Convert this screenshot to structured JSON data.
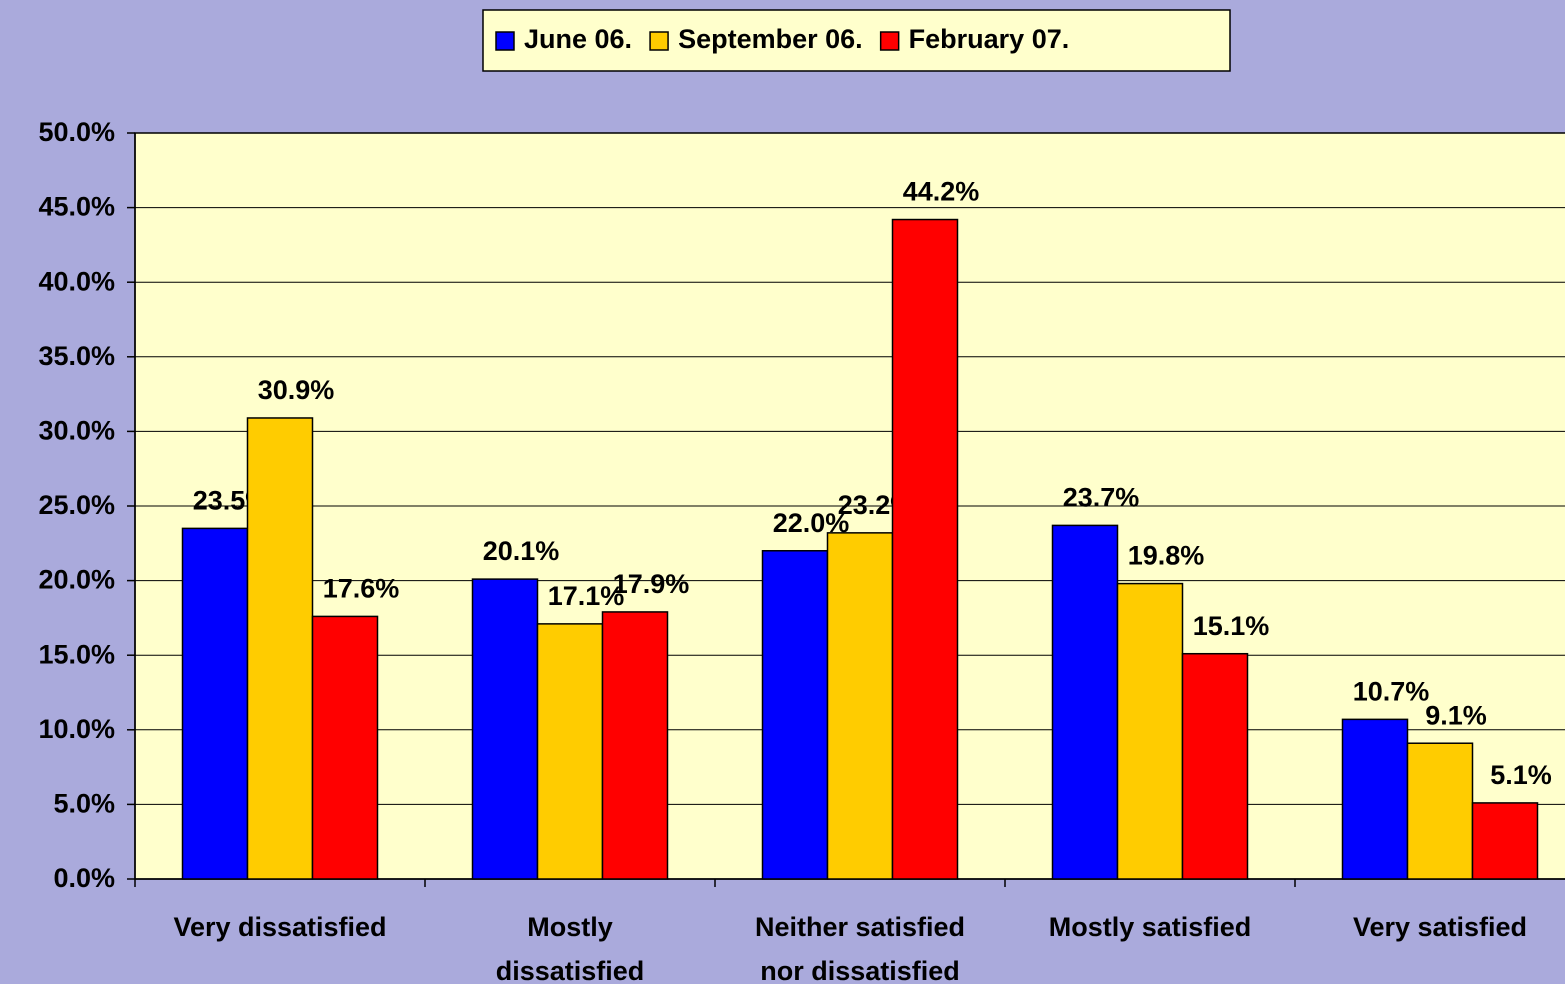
{
  "chart_data": {
    "type": "bar",
    "categories": [
      "Very dissatisfied",
      "Mostly\ndissatisfied",
      "Neither satisfied\nnor dissatisfied",
      "Mostly satisfied",
      "Very satisfied"
    ],
    "series": [
      {
        "name": "June 06.",
        "color": "#0000ff",
        "values": [
          23.5,
          20.1,
          22.0,
          23.7,
          10.7
        ],
        "value_labels": [
          "23.5%",
          "20.1%",
          "22.0%",
          "23.7%",
          "10.7%"
        ]
      },
      {
        "name": "September 06.",
        "color": "#ffcc00",
        "values": [
          30.9,
          17.1,
          23.2,
          19.8,
          9.1
        ],
        "value_labels": [
          "30.9%",
          "17.1%",
          "23.2%",
          "19.8%",
          "9.1%"
        ]
      },
      {
        "name": "February 07.",
        "color": "#ff0000",
        "values": [
          17.6,
          17.9,
          44.2,
          15.1,
          5.1
        ],
        "value_labels": [
          "17.6%",
          "17.9%",
          "44.2%",
          "15.1%",
          "5.1%"
        ]
      }
    ],
    "ylim": [
      0,
      50
    ],
    "yticks": [
      {
        "value": 0,
        "label": "0.0%"
      },
      {
        "value": 5,
        "label": "5.0%"
      },
      {
        "value": 10,
        "label": "10.0%"
      },
      {
        "value": 15,
        "label": "15.0%"
      },
      {
        "value": 20,
        "label": "20.0%"
      },
      {
        "value": 25,
        "label": "25.0%"
      },
      {
        "value": 30,
        "label": "30.0%"
      },
      {
        "value": 35,
        "label": "35.0%"
      },
      {
        "value": 40,
        "label": "40.0%"
      },
      {
        "value": 45,
        "label": "45.0%"
      },
      {
        "value": 50,
        "label": "50.0%"
      }
    ],
    "grid": true,
    "legend": "top",
    "plot_background": "#ffffcc"
  }
}
